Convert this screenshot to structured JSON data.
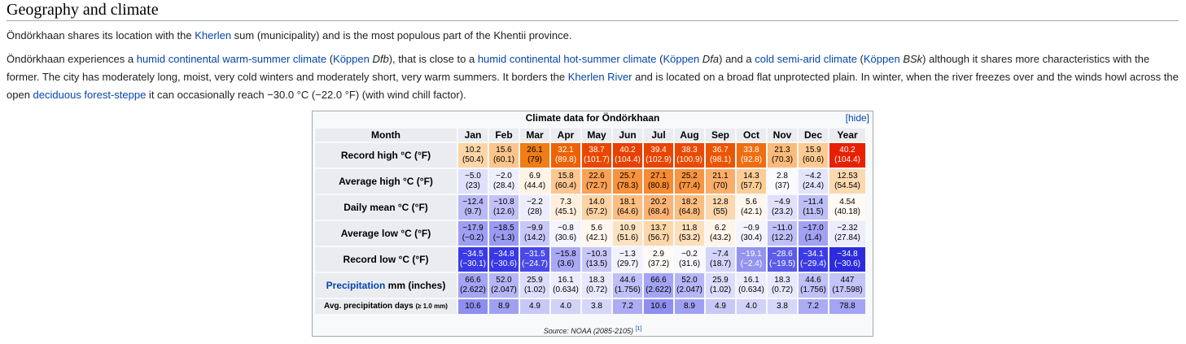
{
  "heading": "Geography and climate",
  "p1": {
    "t1": "Öndörkhaan shares its location with the ",
    "link1": "Kherlen",
    "t2": " sum (municipality) and is the most populous part of the Khentii province."
  },
  "p2": {
    "t1": "Öndörkhaan experiences a ",
    "link1": "humid continental warm-summer climate",
    "t2": " (",
    "link2": "Köppen",
    "t3": " ",
    "code1": "Dfb",
    "t4": "), that is close to a ",
    "link3": "humid continental hot-summer climate",
    "t5": " (",
    "link4": "Köppen",
    "t6": " ",
    "code2": "Dfa",
    "t7": ") and a ",
    "link5": "cold semi-arid climate",
    "t8": " (",
    "link6": "Köppen",
    "t9": " ",
    "code3": "BSk",
    "t10": ") although it shares more characteristics with the former. The city has moderately long, moist, very cold winters and moderately short, very warm summers. It borders the ",
    "link7": "Kherlen River",
    "t11": " and is located on a broad flat unprotected plain. In winter, when the river freezes over and the winds howl across the open ",
    "link8": "deciduous forest-steppe",
    "t12": " it can occasionally reach −30.0 °C (−22.0 °F) (with wind chill factor)."
  },
  "table": {
    "caption": "Climate data for Öndörkhaan",
    "hide": "[hide]",
    "header_label": "Month",
    "months": [
      "Jan",
      "Feb",
      "Mar",
      "Apr",
      "May",
      "Jun",
      "Jul",
      "Aug",
      "Sep",
      "Oct",
      "Nov",
      "Dec",
      "Year"
    ],
    "rows": [
      {
        "label": "Record high °C (°F)",
        "v1": [
          "10.2",
          "15.6",
          "26.1",
          "32.1",
          "38.7",
          "40.2",
          "39.4",
          "38.3",
          "36.7",
          "33.8",
          "21.3",
          "15.9",
          "40.2"
        ],
        "v2": [
          "(50.4)",
          "(60.1)",
          "(79)",
          "(89.8)",
          "(101.7)",
          "(104.4)",
          "(102.9)",
          "(100.9)",
          "(98.1)",
          "(92.8)",
          "(70.3)",
          "(60.6)",
          "(104.4)"
        ],
        "bg": [
          "#fdd6a8",
          "#fcc58c",
          "#f07d15",
          "#ee6205",
          "#ea4800",
          "#e84000",
          "#e94400",
          "#ea4a00",
          "#ed5400",
          "#f06e10",
          "#fbbb7a",
          "#fdcb92",
          "#e82000"
        ],
        "fg": [
          "#000",
          "#000",
          "#000",
          "#fff",
          "#fff",
          "#fff",
          "#fff",
          "#fff",
          "#fff",
          "#fff",
          "#000",
          "#000",
          "#fff"
        ]
      },
      {
        "label": "Average high °C (°F)",
        "v1": [
          "−5.0",
          "−2.0",
          "6.9",
          "15.8",
          "22.6",
          "25.7",
          "27.1",
          "25.2",
          "21.1",
          "14.3",
          "2.8",
          "−4.2",
          "12.53"
        ],
        "v2": [
          "(23)",
          "(28.4)",
          "(44.4)",
          "(60.4)",
          "(72.7)",
          "(78.3)",
          "(80.8)",
          "(77.4)",
          "(70)",
          "(57.7)",
          "(37)",
          "(24.4)",
          "(54.54)"
        ],
        "bg": [
          "#e0e0fc",
          "#eeeefe",
          "#fff3e4",
          "#fcc690",
          "#f9a157",
          "#f7923e",
          "#f68b32",
          "#f79542",
          "#fbae6a",
          "#fdcd97",
          "#fbfbff",
          "#e4e4fc",
          "#fdd9b0"
        ],
        "fg": [
          "#000",
          "#000",
          "#000",
          "#000",
          "#000",
          "#000",
          "#000",
          "#000",
          "#000",
          "#000",
          "#000",
          "#000",
          "#000"
        ]
      },
      {
        "label": "Daily mean °C (°F)",
        "v1": [
          "−12.4",
          "−10.8",
          "−2.2",
          "7.3",
          "14.0",
          "18.1",
          "20.2",
          "18.2",
          "12.8",
          "5.6",
          "−4.9",
          "−11.4",
          "4.54"
        ],
        "v2": [
          "(9.7)",
          "(12.6)",
          "(28)",
          "(45.1)",
          "(57.2)",
          "(64.6)",
          "(68.4)",
          "(64.8)",
          "(55)",
          "(42.1)",
          "(23.2)",
          "(11.5)",
          "(40.18)"
        ],
        "bg": [
          "#babaf6",
          "#c2c2f8",
          "#ececfe",
          "#ffefdc",
          "#fdd3a4",
          "#fcbd80",
          "#fbb274",
          "#fcbd80",
          "#fdd8ae",
          "#fff6ee",
          "#e0e0fc",
          "#bebef7",
          "#fffaf3"
        ],
        "fg": [
          "#000",
          "#000",
          "#000",
          "#000",
          "#000",
          "#000",
          "#000",
          "#000",
          "#000",
          "#000",
          "#000",
          "#000",
          "#000"
        ]
      },
      {
        "label": "Average low °C (°F)",
        "v1": [
          "−17.9",
          "−18.5",
          "−9.9",
          "−0.8",
          "5.6",
          "10.9",
          "13.7",
          "11.8",
          "6.2",
          "−0.9",
          "−11.0",
          "−17.0",
          "−2.32"
        ],
        "v2": [
          "(−0.2)",
          "(−1.3)",
          "(14.2)",
          "(30.6)",
          "(42.1)",
          "(51.6)",
          "(56.7)",
          "(53.2)",
          "(43.2)",
          "(30.4)",
          "(12.2)",
          "(1.4)",
          "(27.84)"
        ],
        "bg": [
          "#9e9ef2",
          "#9a9af2",
          "#c8c8f8",
          "#f4f4fe",
          "#fff6ee",
          "#fde2c2",
          "#fdd6aa",
          "#fddfbc",
          "#fff4e8",
          "#f4f4fe",
          "#c0c0f8",
          "#a2a2f3",
          "#ececfe"
        ],
        "fg": [
          "#000",
          "#000",
          "#000",
          "#000",
          "#000",
          "#000",
          "#000",
          "#000",
          "#000",
          "#000",
          "#000",
          "#000",
          "#000"
        ]
      },
      {
        "label": "Record low °C (°F)",
        "v1": [
          "−34.5",
          "−34.8",
          "−31.5",
          "−15.8",
          "−10.3",
          "−1.3",
          "2.9",
          "−0.2",
          "−7.4",
          "−19.1",
          "−28.6",
          "−34.1",
          "−34.8"
        ],
        "v2": [
          "(−30.1)",
          "(−30.6)",
          "(−24.7)",
          "(3.6)",
          "(13.5)",
          "(29.7)",
          "(37.2)",
          "(31.6)",
          "(18.7)",
          "(−2.4)",
          "(−19.5)",
          "(−29.4)",
          "(−30.6)"
        ],
        "bg": [
          "#3a3ae6",
          "#3838e6",
          "#4a4ae8",
          "#a8a8f4",
          "#c6c6f8",
          "#f2f2fe",
          "#fffaf6",
          "#f8f8fe",
          "#d4d4fa",
          "#9494f0",
          "#5c5cea",
          "#3c3ce6",
          "#2c2cdc"
        ],
        "fg": [
          "#fff",
          "#fff",
          "#fff",
          "#000",
          "#000",
          "#000",
          "#000",
          "#000",
          "#000",
          "#fff",
          "#fff",
          "#fff",
          "#fff"
        ]
      },
      {
        "label": "Precipitation mm (inches)",
        "label_link": "Precipitation",
        "label_rest": " mm (inches)",
        "v1": [
          "66.6",
          "52.0",
          "25.9",
          "16.1",
          "18.3",
          "44.6",
          "66.6",
          "52.0",
          "25.9",
          "16.1",
          "18.3",
          "44.6",
          "447"
        ],
        "v2": [
          "(2.622)",
          "(2.047)",
          "(1.02)",
          "(0.634)",
          "(0.72)",
          "(1.756)",
          "(2.622)",
          "(2.047)",
          "(1.02)",
          "(0.634)",
          "(0.72)",
          "(1.756)",
          "(17.598)"
        ],
        "bg": [
          "#a4a4f4",
          "#b6b6f6",
          "#dcdcfb",
          "#ececfe",
          "#e8e8fd",
          "#c0c0f8",
          "#a4a4f4",
          "#b6b6f6",
          "#dcdcfb",
          "#ececfe",
          "#e8e8fd",
          "#c0c0f8",
          "#c4c4f8"
        ],
        "fg": [
          "#000",
          "#000",
          "#000",
          "#000",
          "#000",
          "#000",
          "#000",
          "#000",
          "#000",
          "#000",
          "#000",
          "#000",
          "#000"
        ]
      },
      {
        "label": "Avg. precipitation days",
        "label_small": "(≥ 1.0 mm)",
        "v1": [
          "10.6",
          "8.9",
          "4.9",
          "4.0",
          "3.8",
          "7.2",
          "10.6",
          "8.9",
          "4.9",
          "4.0",
          "3.8",
          "7.2",
          "78.8"
        ],
        "v2": [],
        "bg": [
          "#8e8ef0",
          "#a0a0f3",
          "#c8c8f8",
          "#d2d2f9",
          "#d6d6fa",
          "#acacf4",
          "#8e8ef0",
          "#a0a0f3",
          "#c8c8f8",
          "#d2d2f9",
          "#d6d6fa",
          "#acacf4",
          "#a4a4f4"
        ],
        "fg": [
          "#000",
          "#000",
          "#000",
          "#000",
          "#000",
          "#000",
          "#000",
          "#000",
          "#000",
          "#000",
          "#000",
          "#000",
          "#000"
        ]
      }
    ],
    "source_text": "Source: NOAA (2085-2105) ",
    "source_ref": "[1]"
  }
}
